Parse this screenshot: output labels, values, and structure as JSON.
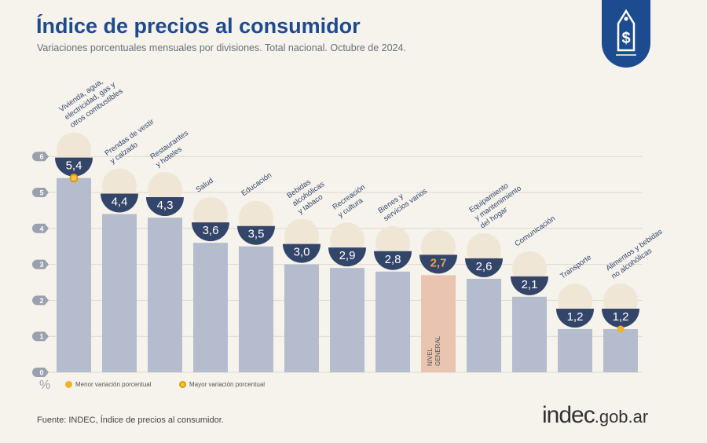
{
  "header": {
    "title": "Índice de precios al consumidor",
    "subtitle": "Variaciones porcentuales mensuales por divisiones. Total nacional. Octubre de 2024."
  },
  "logo_icon": "price-tag-dollar-icon",
  "legend": {
    "min": "Menor variación porcentual",
    "max": "Mayor variación porcentual",
    "unit": "%"
  },
  "footer": {
    "source": "Fuente: INDEC, Índice de precios al consumidor.",
    "brand_main": "indec",
    "brand_suffix": ".gob.ar"
  },
  "colors": {
    "bar": "#b5bccd",
    "general": "#e9c4b0",
    "bubble": "#34456a",
    "accent": "#f0b32a",
    "title": "#1d4b8f"
  },
  "chart_data": {
    "type": "bar",
    "title": "Índice de precios al consumidor",
    "ylabel": "%",
    "ylim": [
      0,
      6
    ],
    "yticks": [
      0,
      1,
      2,
      3,
      4,
      5,
      6
    ],
    "categories": [
      [
        "Vivienda, agua,",
        "electricidad, gas y",
        "otros combustibles"
      ],
      [
        "Prendas de vestir",
        "y calzado"
      ],
      [
        "Restaurantes",
        "y hoteles"
      ],
      [
        "Salud"
      ],
      [
        "Educación"
      ],
      [
        "Bebidas",
        "alcohólicas",
        "y tabaco"
      ],
      [
        "Recreación",
        "y cultura"
      ],
      [
        "Bienes y",
        "servicios varios"
      ],
      [],
      [
        "Equipamiento",
        "y mantenimiento",
        "del hogar"
      ],
      [
        "Comunicación"
      ],
      [
        "Transporte"
      ],
      [
        "Alimentos y bebidas",
        "no alcohólicas"
      ]
    ],
    "values": [
      5.4,
      4.4,
      4.3,
      3.6,
      3.5,
      3.0,
      2.9,
      2.8,
      2.7,
      2.6,
      2.1,
      1.2,
      1.2
    ],
    "value_labels": [
      "5,4",
      "4,4",
      "4,3",
      "3,6",
      "3,5",
      "3,0",
      "2,9",
      "2,8",
      "2,7",
      "2,6",
      "2,1",
      "1,2",
      "1,2"
    ],
    "general_index": 8,
    "general_label": [
      "NIVEL",
      "GENERAL"
    ],
    "max_index": 0,
    "min_index": 12
  }
}
